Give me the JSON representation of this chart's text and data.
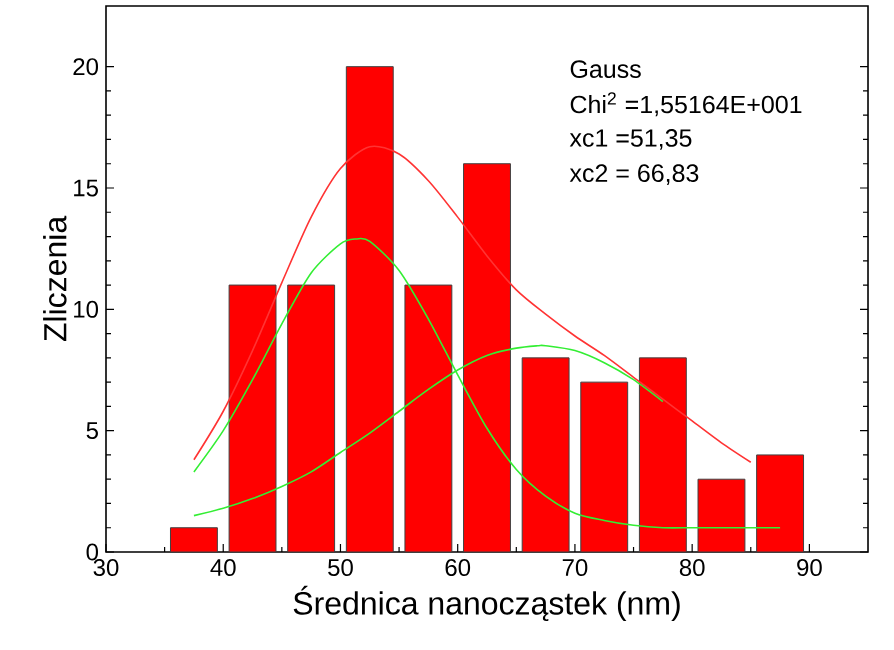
{
  "chart_data": {
    "type": "histogram",
    "xlabel": "Średnica nanocząstek (nm)",
    "ylabel": "Zliczenia",
    "bins": [
      35,
      40,
      45,
      50,
      55,
      60,
      65,
      70,
      75,
      80,
      85,
      90
    ],
    "values": [
      1,
      11,
      11,
      20,
      11,
      16,
      8,
      7,
      8,
      3,
      4
    ],
    "color": "#ff0000",
    "series": [
      {
        "type": "line",
        "color": "#33ee33",
        "x": [
          37.5,
          40,
          42.5,
          45,
          47.5,
          50,
          51.35,
          52.5,
          55,
          57.5,
          60,
          62.5,
          65,
          67.5,
          70,
          72.5,
          75,
          77.5,
          80,
          82.5,
          85,
          87.5
        ],
        "values": [
          3.3,
          5.0,
          7.1,
          9.4,
          11.5,
          12.7,
          12.9,
          12.8,
          11.6,
          9.6,
          7.3,
          5.1,
          3.4,
          2.3,
          1.6,
          1.3,
          1.1,
          1.0,
          1.0,
          1.0,
          1.0,
          1.0
        ]
      },
      {
        "type": "line",
        "color": "#33ee33",
        "x": [
          37.5,
          40,
          42.5,
          45,
          47.5,
          50,
          52.5,
          55,
          57.5,
          60,
          62.5,
          65,
          66.83,
          67.5,
          70,
          72.5,
          75,
          77.5
        ],
        "values": [
          1.5,
          1.8,
          2.2,
          2.7,
          3.3,
          4.1,
          4.9,
          5.8,
          6.7,
          7.5,
          8.1,
          8.4,
          8.5,
          8.5,
          8.3,
          7.8,
          7.1,
          6.2
        ]
      },
      {
        "type": "line",
        "color": "#ff3333",
        "x": [
          37.5,
          40,
          42.5,
          45,
          47.5,
          50,
          52.5,
          55,
          57.5,
          60,
          62.5,
          65,
          67.5,
          70,
          72.5,
          75,
          77.5,
          80,
          82.5,
          85
        ],
        "values": [
          3.8,
          5.8,
          8.3,
          11.1,
          13.8,
          15.8,
          16.7,
          16.4,
          15.3,
          13.8,
          12.2,
          10.8,
          9.8,
          8.9,
          8.1,
          7.2,
          6.3,
          5.4,
          4.5,
          3.7
        ]
      }
    ],
    "annotations": [
      "Gauss",
      "Chi$^{2}$ =1,55164E+001",
      "xc1 =51,35",
      "xc2 = 66,83"
    ],
    "xlim": [
      30,
      95
    ],
    "ylim": [
      0,
      22.5
    ],
    "xticks": [
      30,
      40,
      50,
      60,
      70,
      80,
      90
    ],
    "yticks": [
      0,
      5,
      10,
      15,
      20
    ],
    "grid": false
  }
}
